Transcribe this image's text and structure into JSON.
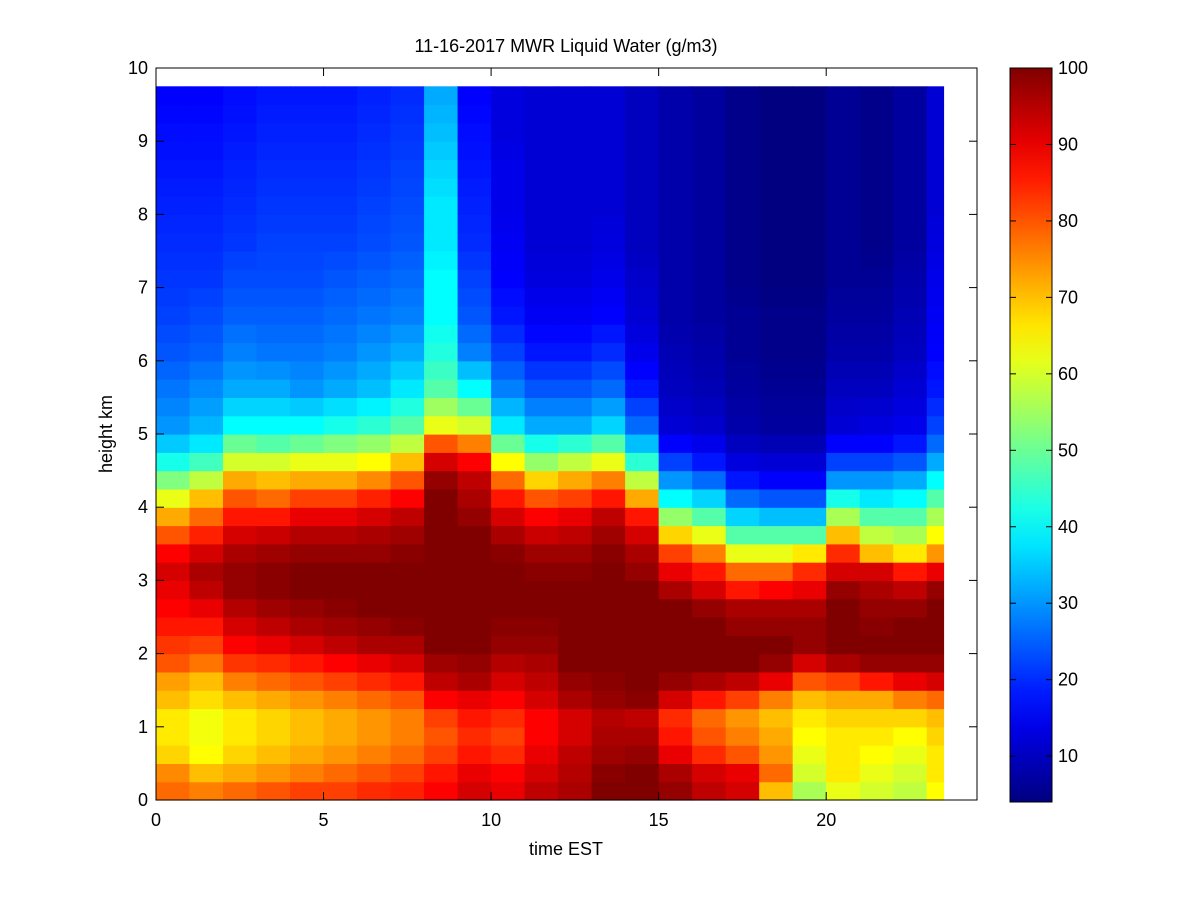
{
  "chart_data": {
    "type": "heatmap",
    "title": "11-16-2017 MWR Liquid Water (g/m3)",
    "xlabel": "time EST",
    "ylabel": "height km",
    "xlim": [
      0,
      24.5
    ],
    "ylim": [
      0,
      10
    ],
    "x_ticks": [
      0,
      5,
      10,
      15,
      20
    ],
    "y_ticks": [
      0,
      1,
      2,
      3,
      4,
      5,
      6,
      7,
      8,
      9,
      10
    ],
    "colorbar": {
      "colormap": "jet",
      "range": [
        4,
        100
      ],
      "ticks": [
        10,
        20,
        30,
        40,
        50,
        60,
        70,
        80,
        90,
        100
      ]
    },
    "grid": false,
    "data_extent": {
      "x": [
        0,
        23.5
      ],
      "y": [
        0,
        9.75
      ]
    },
    "time_columns": [
      0,
      1,
      2,
      3,
      4,
      5,
      6,
      7,
      8,
      9,
      10,
      11,
      12,
      13,
      14,
      15,
      16,
      17,
      18,
      19,
      20,
      21,
      22,
      23
    ],
    "profile_heights_km": [
      0,
      0.25,
      0.5,
      0.75,
      1,
      1.25,
      1.5,
      1.75,
      2,
      2.25,
      2.5,
      2.75,
      3,
      3.25,
      3.5,
      3.75,
      4,
      4.25,
      4.5,
      4.75,
      5,
      5.5,
      6,
      6.5,
      7,
      7.5,
      8,
      8.5,
      9,
      9.5,
      9.75
    ],
    "profiles": [
      {
        "time": 0,
        "values": [
          78,
          75,
          68,
          66,
          66,
          70,
          73,
          80,
          83,
          86,
          88,
          90,
          92,
          88,
          80,
          72,
          62,
          52,
          42,
          35,
          30,
          27,
          24,
          22,
          21,
          20,
          19,
          18,
          17,
          16,
          16
        ]
      },
      {
        "time": 1,
        "values": [
          76,
          70,
          64,
          63,
          63,
          67,
          70,
          77,
          82,
          86,
          90,
          94,
          96,
          92,
          85,
          78,
          70,
          58,
          46,
          38,
          33,
          29,
          25,
          23,
          21,
          20,
          19,
          18,
          17,
          16,
          16
        ]
      },
      {
        "time": 2,
        "values": [
          78,
          72,
          68,
          66,
          66,
          70,
          76,
          83,
          88,
          92,
          95,
          98,
          98,
          96,
          92,
          86,
          80,
          72,
          60,
          50,
          40,
          32,
          28,
          25,
          23,
          21,
          20,
          19,
          18,
          17,
          17
        ]
      },
      {
        "time": 3,
        "values": [
          80,
          74,
          70,
          68,
          68,
          72,
          78,
          84,
          90,
          94,
          97,
          99,
          99,
          97,
          93,
          86,
          78,
          70,
          60,
          48,
          40,
          32,
          27,
          25,
          23,
          22,
          21,
          20,
          19,
          18,
          18
        ]
      },
      {
        "time": 4,
        "values": [
          82,
          76,
          72,
          70,
          70,
          74,
          80,
          86,
          92,
          96,
          98,
          100,
          100,
          98,
          95,
          90,
          82,
          72,
          62,
          50,
          40,
          30,
          27,
          25,
          23,
          22,
          21,
          20,
          19,
          18,
          18
        ]
      },
      {
        "time": 5,
        "values": [
          82,
          78,
          74,
          72,
          72,
          76,
          82,
          88,
          94,
          97,
          99,
          100,
          100,
          98,
          95,
          90,
          82,
          72,
          62,
          52,
          42,
          32,
          28,
          26,
          24,
          22,
          21,
          20,
          19,
          18,
          18
        ]
      },
      {
        "time": 6,
        "values": [
          84,
          80,
          76,
          74,
          74,
          78,
          84,
          90,
          96,
          98,
          100,
          100,
          100,
          98,
          96,
          92,
          85,
          75,
          64,
          54,
          44,
          34,
          30,
          27,
          25,
          23,
          22,
          21,
          20,
          19,
          19
        ]
      },
      {
        "time": 7,
        "values": [
          85,
          82,
          78,
          76,
          76,
          80,
          86,
          92,
          96,
          99,
          100,
          100,
          100,
          99,
          97,
          94,
          88,
          80,
          70,
          58,
          48,
          38,
          32,
          28,
          26,
          24,
          23,
          22,
          21,
          20,
          20
        ]
      },
      {
        "time": 8,
        "values": [
          88,
          86,
          82,
          80,
          82,
          88,
          94,
          97,
          100,
          100,
          100,
          100,
          100,
          100,
          100,
          100,
          100,
          98,
          92,
          80,
          62,
          48,
          43,
          40,
          40,
          38,
          38,
          36,
          34,
          32,
          30
        ]
      },
      {
        "time": 9,
        "values": [
          92,
          90,
          86,
          84,
          86,
          90,
          96,
          98,
          100,
          100,
          100,
          100,
          100,
          100,
          100,
          98,
          96,
          94,
          88,
          76,
          60,
          40,
          28,
          24,
          22,
          20,
          19,
          18,
          17,
          16,
          16
        ]
      },
      {
        "time": 10,
        "values": [
          90,
          88,
          84,
          82,
          84,
          88,
          92,
          95,
          98,
          99,
          100,
          100,
          100,
          99,
          96,
          92,
          86,
          78,
          64,
          50,
          38,
          28,
          22,
          18,
          16,
          15,
          14,
          14,
          13,
          13,
          13
        ]
      },
      {
        "time": 11,
        "values": [
          94,
          92,
          90,
          88,
          88,
          92,
          94,
          96,
          98,
          99,
          100,
          100,
          99,
          97,
          93,
          88,
          80,
          68,
          54,
          42,
          32,
          24,
          18,
          15,
          13,
          12,
          12,
          12,
          12,
          12,
          12
        ]
      },
      {
        "time": 12,
        "values": [
          96,
          95,
          94,
          92,
          92,
          96,
          98,
          100,
          100,
          100,
          100,
          100,
          99,
          97,
          94,
          90,
          82,
          72,
          58,
          44,
          32,
          24,
          18,
          15,
          13,
          12,
          12,
          12,
          12,
          12,
          12
        ]
      },
      {
        "time": 13,
        "values": [
          100,
          99,
          97,
          96,
          95,
          98,
          99,
          100,
          100,
          100,
          100,
          100,
          100,
          99,
          97,
          94,
          86,
          76,
          62,
          48,
          36,
          26,
          20,
          16,
          14,
          13,
          12,
          12,
          12,
          12,
          12
        ]
      },
      {
        "time": 14,
        "values": [
          100,
          100,
          98,
          96,
          94,
          99,
          100,
          100,
          100,
          100,
          100,
          100,
          98,
          96,
          92,
          86,
          72,
          58,
          44,
          34,
          26,
          18,
          14,
          12,
          11,
          10,
          10,
          10,
          10,
          10,
          10
        ]
      },
      {
        "time": 15,
        "values": [
          98,
          96,
          90,
          86,
          84,
          92,
          98,
          100,
          100,
          100,
          100,
          96,
          90,
          82,
          68,
          54,
          40,
          30,
          22,
          16,
          12,
          10,
          9,
          8,
          8,
          8,
          8,
          8,
          8,
          8,
          8
        ]
      },
      {
        "time": 16,
        "values": [
          94,
          92,
          84,
          80,
          78,
          86,
          96,
          100,
          100,
          100,
          98,
          92,
          86,
          76,
          62,
          48,
          36,
          26,
          18,
          14,
          11,
          9,
          8,
          7,
          7,
          7,
          7,
          7,
          7,
          7,
          7
        ]
      },
      {
        "time": 17,
        "values": [
          92,
          90,
          80,
          76,
          74,
          82,
          94,
          100,
          100,
          98,
          96,
          86,
          78,
          62,
          48,
          36,
          26,
          18,
          13,
          10,
          8,
          7,
          6,
          6,
          5,
          5,
          5,
          5,
          5,
          5,
          5
        ]
      },
      {
        "time": 18,
        "values": [
          70,
          78,
          74,
          72,
          70,
          76,
          90,
          98,
          100,
          98,
          96,
          88,
          78,
          62,
          48,
          34,
          24,
          16,
          12,
          9,
          7,
          6,
          5,
          5,
          4,
          4,
          4,
          4,
          4,
          4,
          4
        ]
      },
      {
        "time": 19,
        "values": [
          56,
          60,
          62,
          64,
          66,
          70,
          80,
          92,
          98,
          98,
          96,
          90,
          84,
          66,
          48,
          34,
          24,
          16,
          12,
          9,
          7,
          6,
          5,
          5,
          4,
          4,
          4,
          4,
          4,
          4,
          4
        ]
      },
      {
        "time": 20,
        "values": [
          62,
          66,
          66,
          66,
          68,
          72,
          82,
          96,
          100,
          100,
          100,
          98,
          92,
          84,
          70,
          56,
          42,
          30,
          22,
          16,
          12,
          10,
          8,
          7,
          6,
          6,
          6,
          6,
          6,
          6,
          6
        ]
      },
      {
        "time": 21,
        "values": [
          60,
          62,
          64,
          66,
          68,
          72,
          86,
          98,
          100,
          99,
          98,
          96,
          92,
          70,
          58,
          48,
          38,
          30,
          22,
          16,
          13,
          10,
          8,
          7,
          6,
          5,
          5,
          5,
          5,
          5,
          5
        ]
      },
      {
        "time": 22,
        "values": [
          58,
          60,
          62,
          64,
          68,
          76,
          90,
          98,
          100,
          100,
          98,
          94,
          86,
          66,
          56,
          48,
          40,
          32,
          24,
          18,
          14,
          12,
          10,
          9,
          8,
          7,
          7,
          7,
          7,
          7,
          7
        ]
      },
      {
        "time": 23,
        "values": [
          64,
          66,
          66,
          68,
          70,
          78,
          92,
          98,
          100,
          100,
          100,
          98,
          90,
          74,
          64,
          56,
          48,
          40,
          32,
          26,
          22,
          18,
          16,
          15,
          14,
          13,
          12,
          12,
          12,
          12,
          12
        ]
      }
    ]
  }
}
